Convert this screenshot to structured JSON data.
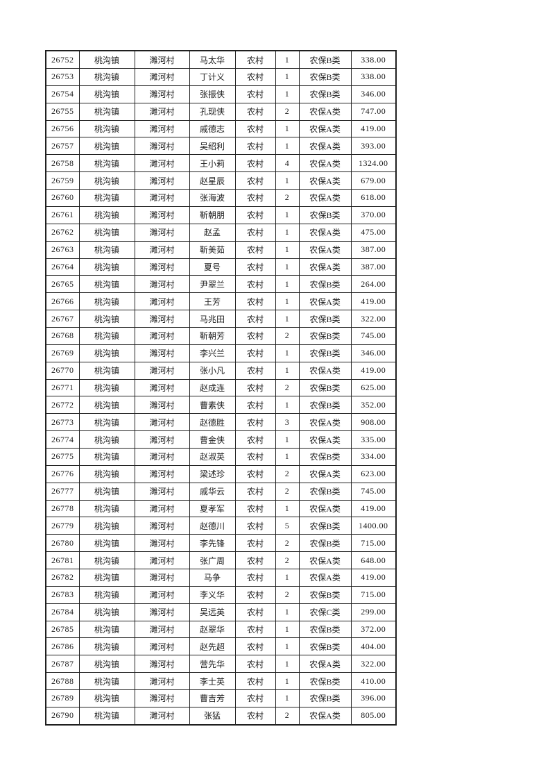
{
  "table": {
    "column_keys": [
      "record-id",
      "town",
      "village",
      "name",
      "residence-type",
      "person-count",
      "insurance-category",
      "amount"
    ],
    "rows": [
      [
        "26752",
        "桃沟镇",
        "濉河村",
        "马太华",
        "农村",
        "1",
        "农保B类",
        "338.00"
      ],
      [
        "26753",
        "桃沟镇",
        "濉河村",
        "丁计义",
        "农村",
        "1",
        "农保B类",
        "338.00"
      ],
      [
        "26754",
        "桃沟镇",
        "濉河村",
        "张振侠",
        "农村",
        "1",
        "农保B类",
        "346.00"
      ],
      [
        "26755",
        "桃沟镇",
        "濉河村",
        "孔现侠",
        "农村",
        "2",
        "农保A类",
        "747.00"
      ],
      [
        "26756",
        "桃沟镇",
        "濉河村",
        "戚德志",
        "农村",
        "1",
        "农保A类",
        "419.00"
      ],
      [
        "26757",
        "桃沟镇",
        "濉河村",
        "吴绍利",
        "农村",
        "1",
        "农保A类",
        "393.00"
      ],
      [
        "26758",
        "桃沟镇",
        "濉河村",
        "王小莉",
        "农村",
        "4",
        "农保A类",
        "1324.00"
      ],
      [
        "26759",
        "桃沟镇",
        "濉河村",
        "赵星辰",
        "农村",
        "1",
        "农保A类",
        "679.00"
      ],
      [
        "26760",
        "桃沟镇",
        "濉河村",
        "张海波",
        "农村",
        "2",
        "农保A类",
        "618.00"
      ],
      [
        "26761",
        "桃沟镇",
        "濉河村",
        "靳朝朋",
        "农村",
        "1",
        "农保B类",
        "370.00"
      ],
      [
        "26762",
        "桃沟镇",
        "濉河村",
        "赵孟",
        "农村",
        "1",
        "农保A类",
        "475.00"
      ],
      [
        "26763",
        "桃沟镇",
        "濉河村",
        "靳美茹",
        "农村",
        "1",
        "农保A类",
        "387.00"
      ],
      [
        "26764",
        "桃沟镇",
        "濉河村",
        "夏号",
        "农村",
        "1",
        "农保A类",
        "387.00"
      ],
      [
        "26765",
        "桃沟镇",
        "濉河村",
        "尹翠兰",
        "农村",
        "1",
        "农保B类",
        "264.00"
      ],
      [
        "26766",
        "桃沟镇",
        "濉河村",
        "王芳",
        "农村",
        "1",
        "农保A类",
        "419.00"
      ],
      [
        "26767",
        "桃沟镇",
        "濉河村",
        "马兆田",
        "农村",
        "1",
        "农保B类",
        "322.00"
      ],
      [
        "26768",
        "桃沟镇",
        "濉河村",
        "靳朝芳",
        "农村",
        "2",
        "农保B类",
        "745.00"
      ],
      [
        "26769",
        "桃沟镇",
        "濉河村",
        "李兴兰",
        "农村",
        "1",
        "农保B类",
        "346.00"
      ],
      [
        "26770",
        "桃沟镇",
        "濉河村",
        "张小凡",
        "农村",
        "1",
        "农保A类",
        "419.00"
      ],
      [
        "26771",
        "桃沟镇",
        "濉河村",
        "赵成连",
        "农村",
        "2",
        "农保B类",
        "625.00"
      ],
      [
        "26772",
        "桃沟镇",
        "濉河村",
        "曹素侠",
        "农村",
        "1",
        "农保B类",
        "352.00"
      ],
      [
        "26773",
        "桃沟镇",
        "濉河村",
        "赵德胜",
        "农村",
        "3",
        "农保A类",
        "908.00"
      ],
      [
        "26774",
        "桃沟镇",
        "濉河村",
        "曹金侠",
        "农村",
        "1",
        "农保A类",
        "335.00"
      ],
      [
        "26775",
        "桃沟镇",
        "濉河村",
        "赵淑英",
        "农村",
        "1",
        "农保B类",
        "334.00"
      ],
      [
        "26776",
        "桃沟镇",
        "濉河村",
        "梁述珍",
        "农村",
        "2",
        "农保A类",
        "623.00"
      ],
      [
        "26777",
        "桃沟镇",
        "濉河村",
        "戚华云",
        "农村",
        "2",
        "农保B类",
        "745.00"
      ],
      [
        "26778",
        "桃沟镇",
        "濉河村",
        "夏孝军",
        "农村",
        "1",
        "农保A类",
        "419.00"
      ],
      [
        "26779",
        "桃沟镇",
        "濉河村",
        "赵德川",
        "农村",
        "5",
        "农保B类",
        "1400.00"
      ],
      [
        "26780",
        "桃沟镇",
        "濉河村",
        "李先锋",
        "农村",
        "2",
        "农保B类",
        "715.00"
      ],
      [
        "26781",
        "桃沟镇",
        "濉河村",
        "张广周",
        "农村",
        "2",
        "农保A类",
        "648.00"
      ],
      [
        "26782",
        "桃沟镇",
        "濉河村",
        "马争",
        "农村",
        "1",
        "农保A类",
        "419.00"
      ],
      [
        "26783",
        "桃沟镇",
        "濉河村",
        "李义华",
        "农村",
        "2",
        "农保B类",
        "715.00"
      ],
      [
        "26784",
        "桃沟镇",
        "濉河村",
        "吴远英",
        "农村",
        "1",
        "农保C类",
        "299.00"
      ],
      [
        "26785",
        "桃沟镇",
        "濉河村",
        "赵翠华",
        "农村",
        "1",
        "农保B类",
        "372.00"
      ],
      [
        "26786",
        "桃沟镇",
        "濉河村",
        "赵先超",
        "农村",
        "1",
        "农保B类",
        "404.00"
      ],
      [
        "26787",
        "桃沟镇",
        "濉河村",
        "营先华",
        "农村",
        "1",
        "农保A类",
        "322.00"
      ],
      [
        "26788",
        "桃沟镇",
        "濉河村",
        "李士英",
        "农村",
        "1",
        "农保B类",
        "410.00"
      ],
      [
        "26789",
        "桃沟镇",
        "濉河村",
        "曹吉芳",
        "农村",
        "1",
        "农保B类",
        "396.00"
      ],
      [
        "26790",
        "桃沟镇",
        "濉河村",
        "张猛",
        "农村",
        "2",
        "农保A类",
        "805.00"
      ]
    ]
  }
}
